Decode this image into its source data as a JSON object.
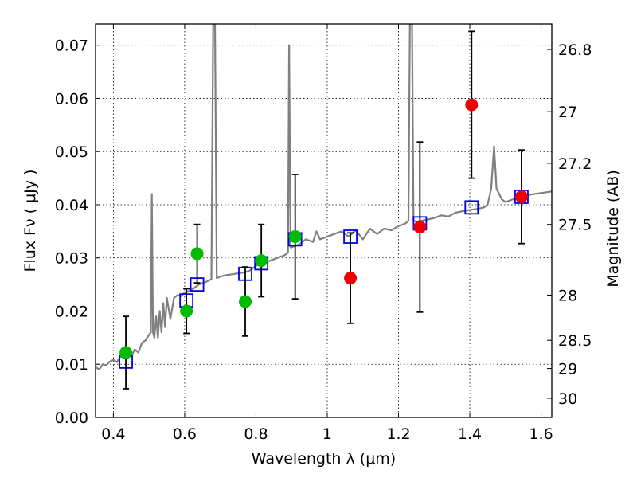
{
  "chart_data": {
    "type": "scatter",
    "xlabel": "Wavelength  λ (μm)",
    "ylabel": "Flux  Fν  ( μJy )",
    "ylabel_right": "Magnitude (AB)",
    "xlim": [
      0.35,
      1.63
    ],
    "ylim": [
      0.0,
      0.074
    ],
    "grid": true,
    "x_ticks": [
      0.4,
      0.6,
      0.8,
      1.0,
      1.2,
      1.4,
      1.6
    ],
    "x_tick_labels": [
      "0.4",
      "0.6",
      "0.8",
      "1",
      "1.2",
      "1.4",
      "1.6"
    ],
    "y_ticks": [
      0.0,
      0.01,
      0.02,
      0.03,
      0.04,
      0.05,
      0.06,
      0.07
    ],
    "y_tick_labels": [
      "0.00",
      "0.01",
      "0.02",
      "0.03",
      "0.04",
      "0.05",
      "0.06",
      "0.07"
    ],
    "right_ticks": [
      {
        "flux": 0.0692,
        "label": "26.8"
      },
      {
        "flux": 0.0575,
        "label": "27"
      },
      {
        "flux": 0.0478,
        "label": "27.2"
      },
      {
        "flux": 0.0363,
        "label": "27.5"
      },
      {
        "flux": 0.023,
        "label": "28"
      },
      {
        "flux": 0.0145,
        "label": "28.5"
      },
      {
        "flux": 0.0092,
        "label": "29"
      },
      {
        "flux": 0.0036,
        "label": "30"
      }
    ],
    "series": [
      {
        "type": "line",
        "color": "#808080",
        "points": [
          [
            0.35,
            0.0095
          ],
          [
            0.36,
            0.009
          ],
          [
            0.37,
            0.01
          ],
          [
            0.38,
            0.0098
          ],
          [
            0.39,
            0.0105
          ],
          [
            0.4,
            0.0108
          ],
          [
            0.41,
            0.0104
          ],
          [
            0.42,
            0.0115
          ],
          [
            0.43,
            0.0112
          ],
          [
            0.44,
            0.012
          ],
          [
            0.45,
            0.0115
          ],
          [
            0.46,
            0.0128
          ],
          [
            0.47,
            0.0122
          ],
          [
            0.48,
            0.014
          ],
          [
            0.49,
            0.0145
          ],
          [
            0.5,
            0.0155
          ],
          [
            0.505,
            0.016
          ],
          [
            0.508,
            0.042
          ],
          [
            0.511,
            0.016
          ],
          [
            0.515,
            0.015
          ],
          [
            0.52,
            0.019
          ],
          [
            0.525,
            0.015
          ],
          [
            0.53,
            0.02
          ],
          [
            0.535,
            0.016
          ],
          [
            0.54,
            0.0215
          ],
          [
            0.545,
            0.017
          ],
          [
            0.55,
            0.0225
          ],
          [
            0.56,
            0.0185
          ],
          [
            0.57,
            0.0225
          ],
          [
            0.58,
            0.023
          ],
          [
            0.59,
            0.0228
          ],
          [
            0.6,
            0.0235
          ],
          [
            0.62,
            0.024
          ],
          [
            0.64,
            0.025
          ],
          [
            0.66,
            0.0255
          ],
          [
            0.675,
            0.026
          ],
          [
            0.68,
            0.074
          ],
          [
            0.685,
            0.074
          ],
          [
            0.69,
            0.0262
          ],
          [
            0.7,
            0.0265
          ],
          [
            0.72,
            0.0268
          ],
          [
            0.74,
            0.027
          ],
          [
            0.76,
            0.0272
          ],
          [
            0.78,
            0.0275
          ],
          [
            0.8,
            0.0285
          ],
          [
            0.82,
            0.029
          ],
          [
            0.84,
            0.0295
          ],
          [
            0.86,
            0.03
          ],
          [
            0.88,
            0.0305
          ],
          [
            0.89,
            0.031
          ],
          [
            0.893,
            0.07
          ],
          [
            0.897,
            0.032
          ],
          [
            0.9,
            0.032
          ],
          [
            0.92,
            0.0325
          ],
          [
            0.94,
            0.0335
          ],
          [
            0.96,
            0.033
          ],
          [
            0.97,
            0.035
          ],
          [
            0.98,
            0.0335
          ],
          [
            1.0,
            0.034
          ],
          [
            1.02,
            0.0345
          ],
          [
            1.04,
            0.035
          ],
          [
            1.06,
            0.034
          ],
          [
            1.08,
            0.0352
          ],
          [
            1.1,
            0.0335
          ],
          [
            1.12,
            0.0355
          ],
          [
            1.14,
            0.0345
          ],
          [
            1.16,
            0.0355
          ],
          [
            1.18,
            0.0352
          ],
          [
            1.2,
            0.036
          ],
          [
            1.22,
            0.0365
          ],
          [
            1.228,
            0.037
          ],
          [
            1.232,
            0.074
          ],
          [
            1.238,
            0.074
          ],
          [
            1.242,
            0.037
          ],
          [
            1.25,
            0.0368
          ],
          [
            1.28,
            0.0372
          ],
          [
            1.3,
            0.0375
          ],
          [
            1.32,
            0.038
          ],
          [
            1.34,
            0.0378
          ],
          [
            1.36,
            0.0385
          ],
          [
            1.38,
            0.0388
          ],
          [
            1.4,
            0.039
          ],
          [
            1.42,
            0.0392
          ],
          [
            1.44,
            0.0395
          ],
          [
            1.45,
            0.04
          ],
          [
            1.46,
            0.043
          ],
          [
            1.468,
            0.051
          ],
          [
            1.475,
            0.043
          ],
          [
            1.49,
            0.041
          ],
          [
            1.5,
            0.0405
          ],
          [
            1.52,
            0.041
          ],
          [
            1.54,
            0.0415
          ],
          [
            1.56,
            0.0418
          ],
          [
            1.58,
            0.042
          ],
          [
            1.6,
            0.0422
          ],
          [
            1.63,
            0.0425
          ]
        ]
      },
      {
        "type": "scatter",
        "marker": "square-open",
        "color": "#0000ee",
        "x": [
          0.435,
          0.605,
          0.635,
          0.77,
          0.815,
          0.91,
          1.065,
          1.26,
          1.405,
          1.545
        ],
        "y": [
          0.0105,
          0.022,
          0.025,
          0.027,
          0.029,
          0.0335,
          0.034,
          0.0365,
          0.0395,
          0.0415
        ]
      },
      {
        "type": "scatter",
        "marker": "circle",
        "color": "#00bb00",
        "x": [
          0.435,
          0.605,
          0.635,
          0.77,
          0.815,
          0.91
        ],
        "y": [
          0.0122,
          0.02,
          0.0308,
          0.0218,
          0.0295,
          0.034
        ],
        "yerr": [
          0.0068,
          0.0042,
          0.0055,
          0.0065,
          0.0068,
          0.0117
        ]
      },
      {
        "type": "scatter",
        "marker": "circle",
        "color": "#ee0000",
        "x": [
          1.065,
          1.26,
          1.405,
          1.545
        ],
        "y": [
          0.0262,
          0.0358,
          0.0588,
          0.0415
        ],
        "yerr": [
          0.0085,
          0.016,
          0.0138,
          0.0088
        ]
      }
    ]
  }
}
